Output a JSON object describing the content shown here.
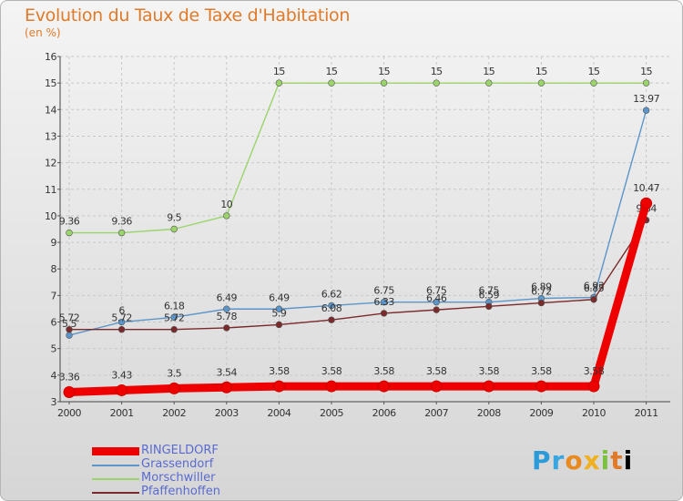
{
  "chart_data": {
    "type": "line",
    "title": "Evolution du Taux de Taxe d'Habitation",
    "subtitle": "(en %)",
    "xlabel": "",
    "ylabel": "",
    "ylim": [
      3,
      16
    ],
    "yticks": [
      "3",
      "4",
      "5",
      "6",
      "7",
      "8",
      "9",
      "10",
      "11",
      "12",
      "13",
      "14",
      "15",
      "16"
    ],
    "categories": [
      "2000",
      "2001",
      "2002",
      "2003",
      "2004",
      "2005",
      "2006",
      "2007",
      "2008",
      "2009",
      "2010",
      "2011"
    ],
    "grid": true,
    "series": [
      {
        "name": "RINGELDORF",
        "color": "#ee0000",
        "values": [
          3.36,
          3.43,
          3.5,
          3.54,
          3.58,
          3.58,
          3.58,
          3.58,
          3.58,
          3.58,
          3.58,
          10.47
        ],
        "labels": [
          "3.36",
          "3.43",
          "3.5",
          "3.54",
          "3.58",
          "3.58",
          "3.58",
          "3.58",
          "3.58",
          "3.58",
          "3.58",
          "10.47"
        ]
      },
      {
        "name": "Grassendorf",
        "color": "#5b95c9",
        "values": [
          5.5,
          6,
          6.18,
          6.49,
          6.49,
          6.62,
          6.75,
          6.75,
          6.75,
          6.89,
          6.93,
          13.97
        ],
        "labels": [
          "5.5",
          "6",
          "6.18",
          "6.49",
          "6.49",
          "6.62",
          "6.75",
          "6.75",
          "6.75",
          "6.89",
          "6.93",
          "13.97"
        ]
      },
      {
        "name": "Morschwiller",
        "color": "#9ad46a",
        "values": [
          9.36,
          9.36,
          9.5,
          10,
          15,
          15,
          15,
          15,
          15,
          15,
          15,
          15
        ],
        "labels": [
          "9.36",
          "9.36",
          "9.5",
          "10",
          "15",
          "15",
          "15",
          "15",
          "15",
          "15",
          "15",
          "15"
        ]
      },
      {
        "name": "Pfaffenhoffen",
        "color": "#7a2a2a",
        "values": [
          5.72,
          5.72,
          5.72,
          5.78,
          5.9,
          6.08,
          6.33,
          6.46,
          6.59,
          6.72,
          6.85,
          9.84
        ],
        "labels": [
          "5.72",
          "5.72",
          "5.72",
          "5.78",
          "5.9",
          "6.08",
          "6.33",
          "6.46",
          "6.59",
          "6.72",
          "6.85",
          "9.84"
        ]
      }
    ]
  },
  "logo": {
    "letters": [
      "P",
      "r",
      "o",
      "x",
      "i",
      "t",
      "i"
    ]
  }
}
